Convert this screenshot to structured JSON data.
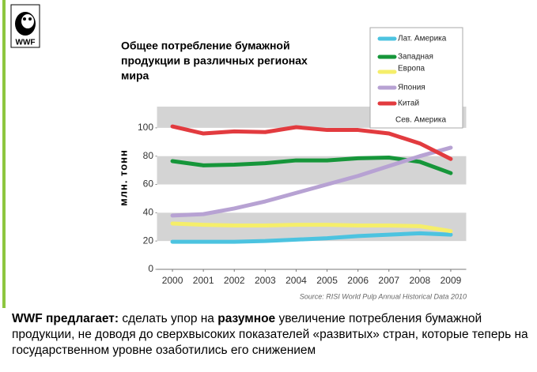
{
  "logo_text": "WWF",
  "chart_data": {
    "type": "line",
    "title": [
      "Общее потребление бумажной",
      "продукции в различных регионах",
      "мира"
    ],
    "y_label": "млн. тонн",
    "x": [
      2000,
      2001,
      2002,
      2003,
      2004,
      2005,
      2006,
      2007,
      2008,
      2009
    ],
    "xlim": [
      1999.5,
      2009.5
    ],
    "xticks": [
      2000,
      2001,
      2002,
      2003,
      2004,
      2005,
      2006,
      2007,
      2008,
      2009
    ],
    "ylim": [
      0,
      115
    ],
    "yticks": [
      0,
      20,
      40,
      60,
      80,
      100
    ],
    "bands": [
      [
        20,
        40
      ],
      [
        60,
        80
      ],
      [
        100,
        115
      ]
    ],
    "series": [
      {
        "name": "Лат. Америка",
        "color": "#4cc3e0",
        "values": [
          19.5,
          19.5,
          19.5,
          20,
          21,
          22,
          23.5,
          24.5,
          25.5,
          24.5
        ]
      },
      {
        "name": "Западная",
        "color": "#16963a",
        "values": [
          76.5,
          73.5,
          74,
          75,
          77,
          77,
          78.5,
          79,
          76,
          68
        ]
      },
      {
        "name": "Европа",
        "color": "#f5ee6a",
        "values": [
          32.4,
          31.5,
          31,
          31,
          31.5,
          31.5,
          31,
          31,
          30.5,
          27
        ]
      },
      {
        "name": "Япония",
        "color": "#b7a2d3",
        "values": [
          38,
          39,
          43,
          48,
          54,
          60,
          66,
          73,
          80,
          86
        ]
      },
      {
        "name": "Китай",
        "color": "#e23b3f",
        "values": [
          101,
          96,
          97.5,
          97,
          100.5,
          98.5,
          98.5,
          96,
          89,
          78
        ]
      }
    ],
    "legend_extra": "Сев. Америка",
    "source": "Source: RISI World Pulp Annual Historical Data 2010"
  },
  "caption": [
    {
      "text": "WWF предлагает:",
      "bold": true
    },
    {
      "text": " сделать упор на ",
      "bold": false
    },
    {
      "text": "разумное",
      "bold": true
    },
    {
      "text": " увеличение потребления бумажной продукции, не доводя до сверхвысоких показателей «развитых» стран, которые теперь на государственном уровне озаботились его снижением",
      "bold": false
    }
  ]
}
